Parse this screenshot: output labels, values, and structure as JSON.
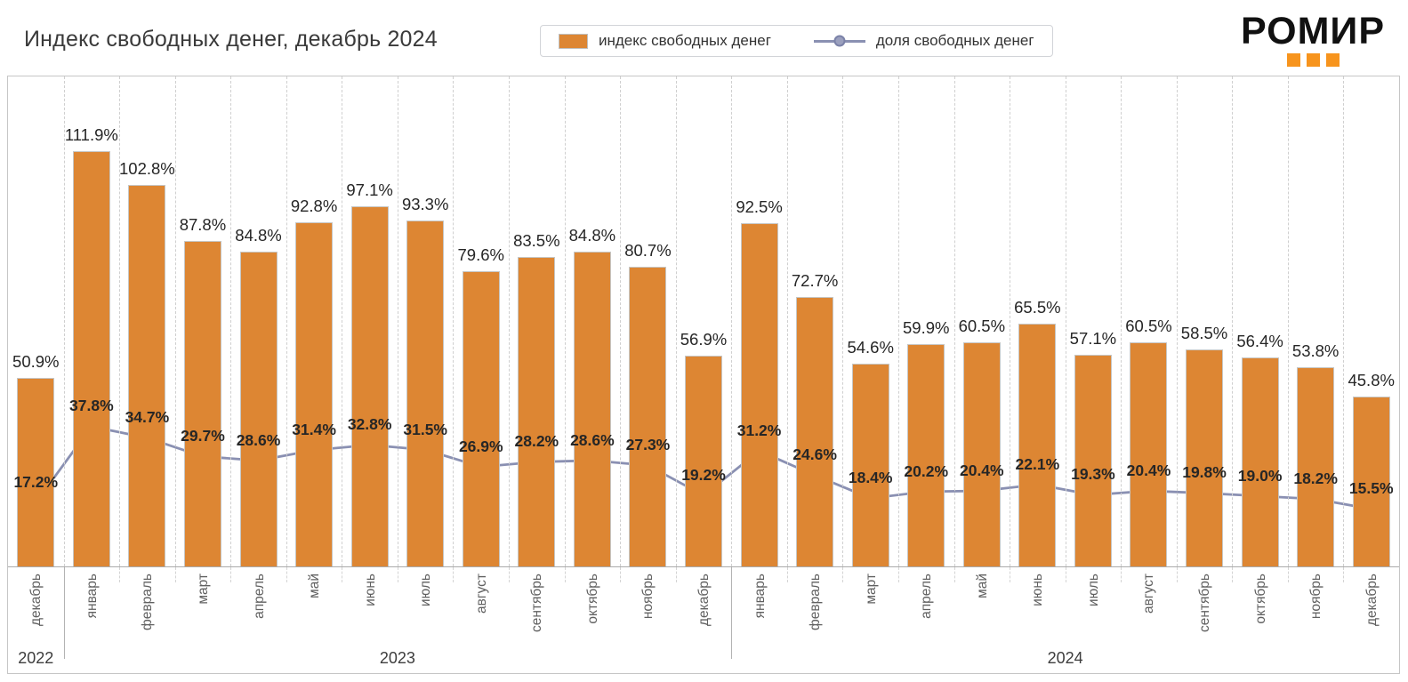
{
  "page": {
    "title": "Индекс свободных денег, декабрь 2024"
  },
  "legend": {
    "items": [
      {
        "label": "индекс свободных денег",
        "type": "bar"
      },
      {
        "label": "доля свободных денег",
        "type": "line"
      }
    ]
  },
  "logo": {
    "text": "РОМИР"
  },
  "colors": {
    "bar": "#DD8633",
    "line": "#8A90B2",
    "marker_fill": "#9BA0BE",
    "marker_stroke": "#7B82A8",
    "logo_accent": "#F7941D"
  },
  "chart_data": {
    "type": "bar",
    "title": "Индекс свободных денег, декабрь 2024",
    "unit": "%",
    "ylim": [
      0,
      132.3
    ],
    "grid": "vertical-dashed",
    "legend_position": "top-center",
    "categories": [
      "декабрь",
      "январь",
      "февраль",
      "март",
      "апрель",
      "май",
      "июнь",
      "июль",
      "август",
      "сентябрь",
      "октябрь",
      "ноябрь",
      "декабрь",
      "январь",
      "февраль",
      "март",
      "апрель",
      "май",
      "июнь",
      "июль",
      "август",
      "сентябрь",
      "октябрь",
      "ноябрь",
      "декабрь"
    ],
    "year_groups": [
      {
        "label": "2022",
        "start": 0,
        "count": 1
      },
      {
        "label": "2023",
        "start": 1,
        "count": 12
      },
      {
        "label": "2024",
        "start": 13,
        "count": 12
      }
    ],
    "series": [
      {
        "name": "индекс свободных денег",
        "type": "bar",
        "values": [
          50.9,
          111.9,
          102.8,
          87.8,
          84.8,
          92.8,
          97.1,
          93.3,
          79.6,
          83.5,
          84.8,
          80.7,
          56.9,
          92.5,
          72.7,
          54.6,
          59.9,
          60.5,
          65.5,
          57.1,
          60.5,
          58.5,
          56.4,
          53.8,
          45.8
        ]
      },
      {
        "name": "доля свободных денег",
        "type": "line",
        "values": [
          17.2,
          37.8,
          34.7,
          29.7,
          28.6,
          31.4,
          32.8,
          31.5,
          26.9,
          28.2,
          28.6,
          27.3,
          19.2,
          31.2,
          24.6,
          18.4,
          20.2,
          20.4,
          22.1,
          19.3,
          20.4,
          19.8,
          19.0,
          18.2,
          15.5
        ]
      }
    ]
  }
}
